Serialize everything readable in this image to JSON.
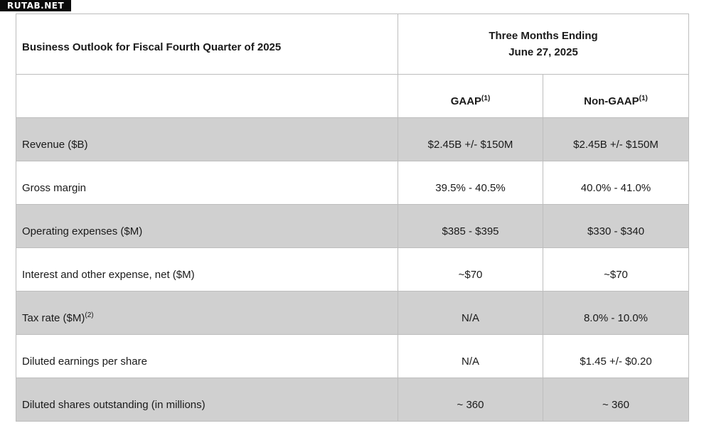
{
  "watermark": "RUTAB.NET",
  "table": {
    "title": "Business Outlook for Fiscal Fourth Quarter of 2025",
    "period_line1": "Three Months Ending",
    "period_line2": "June 27, 2025",
    "columns": [
      {
        "label": "GAAP",
        "note": "(1)"
      },
      {
        "label": "Non-GAAP",
        "note": "(1)"
      }
    ],
    "rows": [
      {
        "label": "Revenue ($B)",
        "note": "",
        "gaap": "$2.45B +/- $150M",
        "non_gaap": "$2.45B +/- $150M"
      },
      {
        "label": "Gross margin",
        "note": "",
        "gaap": "39.5% - 40.5%",
        "non_gaap": "40.0% - 41.0%"
      },
      {
        "label": "Operating expenses ($M)",
        "note": "",
        "gaap": "$385 - $395",
        "non_gaap": "$330 - $340"
      },
      {
        "label": "Interest and other expense, net ($M)",
        "note": "",
        "gaap": "~$70",
        "non_gaap": "~$70"
      },
      {
        "label": "Tax rate ($M)",
        "note": "(2)",
        "gaap": "N/A",
        "non_gaap": "8.0% - 10.0%"
      },
      {
        "label": "Diluted earnings per share",
        "note": "",
        "gaap": "N/A",
        "non_gaap": "$1.45 +/- $0.20"
      },
      {
        "label": "Diluted shares outstanding (in millions)",
        "note": "",
        "gaap": "~ 360",
        "non_gaap": "~ 360"
      }
    ]
  }
}
